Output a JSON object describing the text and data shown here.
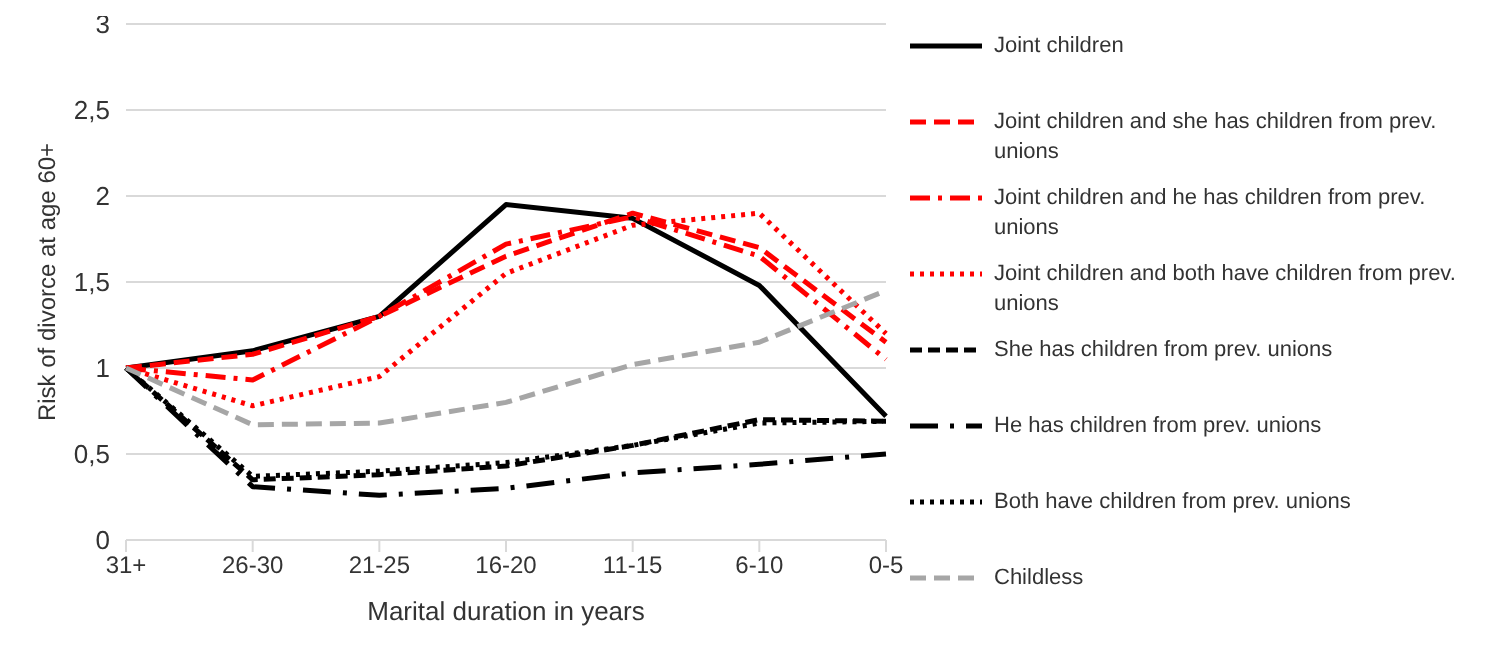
{
  "chart_data": {
    "type": "line",
    "xlabel": "Marital duration in years",
    "ylabel": "Risk of divorce at age 60+",
    "categories": [
      "31+",
      "26-30",
      "21-25",
      "16-20",
      "11-15",
      "6-10",
      "0-5"
    ],
    "ylim": [
      0,
      3
    ],
    "yticks": [
      0,
      {
        "value": 0.5,
        "label": "0,5"
      },
      1,
      {
        "value": 1.5,
        "label": "1,5"
      },
      2,
      {
        "value": 2.5,
        "label": "2,5"
      },
      3
    ],
    "grid": "y",
    "legend": "right",
    "marker": "none",
    "series": [
      {
        "name": "Joint children",
        "color": "#000000",
        "line_style": "solid",
        "values": [
          1,
          1.1,
          1.3,
          1.95,
          1.87,
          1.48,
          0.72
        ]
      },
      {
        "name": "Joint children and she has children from prev. unions",
        "color": "#ff0000",
        "line_style": "dashed",
        "values": [
          1,
          1.08,
          1.3,
          1.65,
          1.9,
          1.7,
          1.15
        ]
      },
      {
        "name": "Joint children and he has children from prev. unions",
        "color": "#ff0000",
        "line_style": "dashed",
        "values": [
          1,
          0.93,
          1.3,
          1.72,
          1.88,
          1.65,
          1.05
        ]
      },
      {
        "name": "Joint children and both have children from prev. unions",
        "color": "#ff0000",
        "line_style": "dotted",
        "values": [
          1,
          0.78,
          0.95,
          1.55,
          1.83,
          1.9,
          1.2
        ]
      },
      {
        "name": "She has children from prev. unions",
        "color": "#000000",
        "line_style": "dashed",
        "values": [
          1,
          0.35,
          0.38,
          0.43,
          0.55,
          0.7,
          0.69
        ]
      },
      {
        "name": "He has children from prev. unions",
        "color": "#000000",
        "line_style": "dashed",
        "values": [
          1,
          0.31,
          0.26,
          0.3,
          0.39,
          0.44,
          0.5
        ]
      },
      {
        "name": "Both have children from prev. unions",
        "color": "#000000",
        "line_style": "dotted",
        "values": [
          1,
          0.37,
          0.4,
          0.45,
          0.55,
          0.68,
          0.69
        ]
      },
      {
        "name": "Childless",
        "color": "#a6a6a6",
        "line_style": "dashed",
        "values": [
          1,
          0.67,
          0.68,
          0.8,
          1.02,
          1.15,
          1.45
        ]
      }
    ]
  }
}
